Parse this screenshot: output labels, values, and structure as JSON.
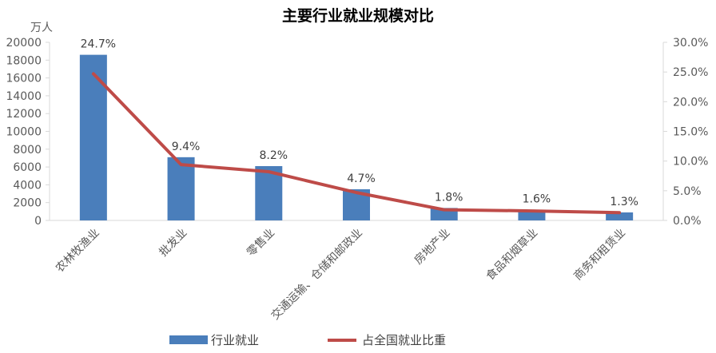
{
  "chart_data": {
    "type": "bar",
    "title": "主要行业就业规模对比",
    "y_unit": "万人",
    "categories": [
      "农林牧渔业",
      "批发业",
      "零售业",
      "交通运输、仓储和邮政业",
      "房地产业",
      "食品和烟草业",
      "商务和租赁业"
    ],
    "series": [
      {
        "name": "行业就业",
        "type": "bar",
        "axis": "left",
        "color": "#4a7ebb",
        "values": [
          18600,
          7100,
          6100,
          3500,
          1400,
          1200,
          900
        ]
      },
      {
        "name": "占全国就业比重",
        "type": "line",
        "axis": "right",
        "color": "#be4b48",
        "values": [
          24.7,
          9.4,
          8.2,
          4.7,
          1.8,
          1.6,
          1.3
        ],
        "labels": [
          "24.7%",
          "9.4%",
          "8.2%",
          "4.7%",
          "1.8%",
          "1.6%",
          "1.3%"
        ]
      }
    ],
    "y_left": {
      "min": 0,
      "max": 20000,
      "step": 2000,
      "ticks": [
        "0",
        "2000",
        "4000",
        "6000",
        "8000",
        "10000",
        "12000",
        "14000",
        "16000",
        "18000",
        "20000"
      ]
    },
    "y_right": {
      "min": 0,
      "max": 30,
      "step": 5,
      "ticks": [
        "0.0%",
        "5.0%",
        "10.0%",
        "15.0%",
        "20.0%",
        "25.0%",
        "30.0%"
      ]
    },
    "grid": false,
    "legend_position": "bottom"
  }
}
